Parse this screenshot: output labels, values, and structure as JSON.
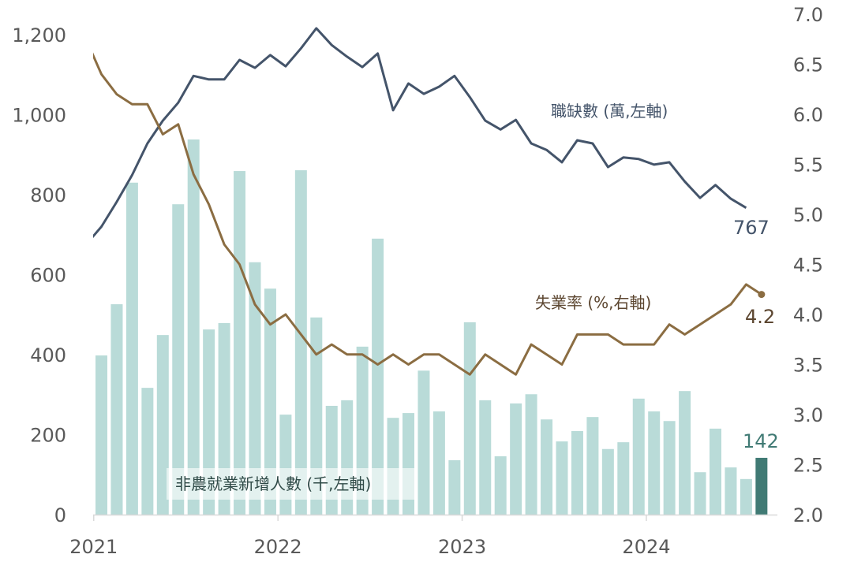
{
  "chart_data": {
    "type": "bar+line",
    "x_start": "2021-01",
    "x_ticks": [
      "2021",
      "2022",
      "2023",
      "2024"
    ],
    "left_axis": {
      "ylim": [
        0,
        1200
      ],
      "ticks": [
        "0",
        "200",
        "400",
        "600",
        "800",
        "1,000",
        "1,200"
      ]
    },
    "right_axis": {
      "ylim": [
        2.0,
        7.0
      ],
      "ticks": [
        "2.0",
        "2.5",
        "3.0",
        "3.5",
        "4.0",
        "4.5",
        "5.0",
        "5.5",
        "6.0",
        "6.5",
        "7.0"
      ]
    },
    "series": [
      {
        "name": "非農就業新增人數 (千,左軸)",
        "type": "bar",
        "axis": "left",
        "color": "#b9dbd8",
        "highlight_color": "#407a74",
        "values": [
          398,
          526,
          830,
          317,
          449,
          776,
          938,
          463,
          479,
          859,
          631,
          565,
          250,
          861,
          493,
          272,
          286,
          420,
          690,
          242,
          254,
          360,
          258,
          136,
          481,
          286,
          146,
          278,
          301,
          238,
          183,
          209,
          244,
          164,
          181,
          290,
          258,
          234,
          309,
          106,
          215,
          118,
          89,
          142
        ],
        "last_label": "142"
      },
      {
        "name": "職缺數 (萬,左軸)",
        "type": "line",
        "axis": "left",
        "color": "#44546a",
        "lead_value_clipped": 675,
        "values": [
          720,
          782,
          849,
          928,
          985,
          1030,
          1097,
          1088,
          1088,
          1137,
          1117,
          1149,
          1121,
          1166,
          1216,
          1174,
          1145,
          1119,
          1153,
          1011,
          1078,
          1052,
          1070,
          1097,
          1044,
          985,
          963,
          987,
          928,
          912,
          881,
          936,
          928,
          869,
          893,
          889,
          875,
          881,
          833,
          792,
          824,
          790,
          767
        ],
        "last_label": "767"
      },
      {
        "name": "失業率 (%,右軸)",
        "type": "line",
        "axis": "right",
        "color": "#8b6d42",
        "lead_value_clipped": 6.75,
        "values": [
          6.4,
          6.2,
          6.1,
          6.1,
          5.8,
          5.9,
          5.4,
          5.1,
          4.7,
          4.5,
          4.1,
          3.9,
          4.0,
          3.8,
          3.6,
          3.7,
          3.6,
          3.6,
          3.5,
          3.6,
          3.5,
          3.6,
          3.6,
          3.5,
          3.4,
          3.6,
          3.5,
          3.4,
          3.7,
          3.6,
          3.5,
          3.8,
          3.8,
          3.8,
          3.7,
          3.7,
          3.7,
          3.9,
          3.8,
          3.9,
          4.0,
          4.1,
          4.3,
          4.2
        ],
        "last_label": "4.2"
      }
    ]
  }
}
